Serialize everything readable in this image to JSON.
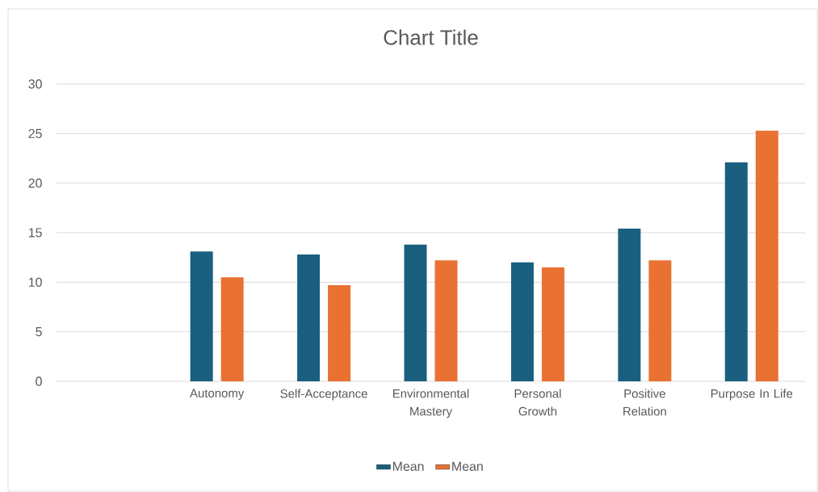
{
  "chart_data": {
    "type": "bar",
    "title": "Chart Title",
    "categories": [
      null,
      "Autonomy",
      "Self-Acceptance",
      "Environmental Mastery",
      "Personal Growth",
      "Positive Relation",
      "Purpose In Life"
    ],
    "series": [
      {
        "name": "Mean",
        "color": "#1a5f80",
        "values": [
          null,
          13.1,
          12.8,
          13.8,
          12.0,
          15.4,
          22.1
        ]
      },
      {
        "name": "Mean",
        "color": "#e97132",
        "values": [
          null,
          10.5,
          9.7,
          12.2,
          11.5,
          12.2,
          25.3
        ]
      }
    ],
    "ylim": [
      0,
      30
    ],
    "yticks": [
      0,
      5,
      10,
      15,
      20,
      25,
      30
    ],
    "grid": "y",
    "legend": "bottom"
  }
}
